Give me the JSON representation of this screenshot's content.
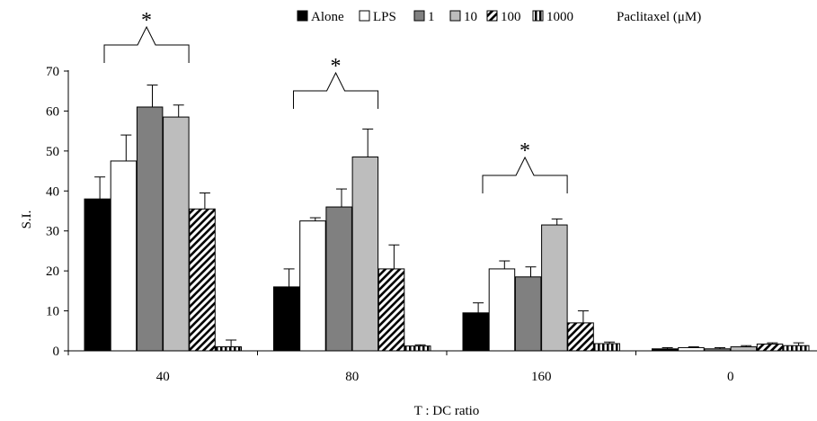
{
  "chart_data": {
    "type": "bar",
    "title": "",
    "xlabel": "T : DC ratio",
    "ylabel": "S.I.",
    "ylim": [
      0,
      70
    ],
    "yticks": [
      0,
      10,
      20,
      30,
      40,
      50,
      60,
      70
    ],
    "grid": false,
    "legend_position": "top",
    "legend_suffix": "Paclitaxel (μM)",
    "categories": [
      "40",
      "80",
      "160",
      "0"
    ],
    "series": [
      {
        "name": "Alone",
        "pattern": "solid-black",
        "values": [
          38,
          16,
          9.5,
          0.5
        ],
        "errors": [
          5.5,
          4.5,
          2.5,
          0.3
        ]
      },
      {
        "name": "LPS",
        "pattern": "white",
        "values": [
          47.5,
          32.5,
          20.5,
          0.8
        ],
        "errors": [
          6.5,
          0.8,
          2,
          0.2
        ]
      },
      {
        "name": "1",
        "pattern": "dark-gray",
        "values": [
          61,
          36,
          18.5,
          0.5
        ],
        "errors": [
          5.5,
          4.5,
          2.5,
          0.3
        ]
      },
      {
        "name": "10",
        "pattern": "light-gray",
        "values": [
          58.5,
          48.5,
          31.5,
          1
        ],
        "errors": [
          3,
          7,
          1.5,
          0.3
        ]
      },
      {
        "name": "100",
        "pattern": "diagonal",
        "values": [
          35.5,
          20.5,
          7,
          1.7
        ],
        "errors": [
          4,
          6,
          3,
          0.3
        ]
      },
      {
        "name": "1000",
        "pattern": "vertical",
        "values": [
          1,
          1.2,
          1.8,
          1.3
        ],
        "errors": [
          1.7,
          0.3,
          0.4,
          0.7
        ]
      }
    ],
    "annotations": [
      {
        "text": "*",
        "group": "40"
      },
      {
        "text": "*",
        "group": "80"
      },
      {
        "text": "*",
        "group": "160"
      }
    ]
  }
}
